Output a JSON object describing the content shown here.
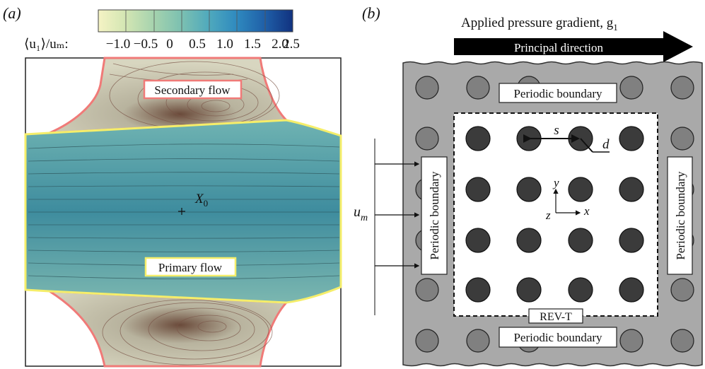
{
  "panel_a": {
    "label": "(a)",
    "colorbar": {
      "axis_label": "⟨u₁⟩/uₘ:",
      "ticks": [
        "−1.0",
        "−0.5",
        "0",
        "0.5",
        "1.0",
        "1.5",
        "2.0",
        "2.5"
      ],
      "colors": [
        "#f5f3c4",
        "#d3e6b3",
        "#a4d2ae",
        "#7bc0b1",
        "#4fa9bd",
        "#2f8abf",
        "#1f5ea7",
        "#11327f"
      ]
    },
    "regions": {
      "secondary_label": "Secondary flow",
      "primary_label": "Primary flow",
      "secondary_border": "#f07a78",
      "primary_border": "#f5ee6a"
    },
    "point_label": "X",
    "point_sub": "0"
  },
  "panel_b": {
    "label": "(b)",
    "arrow_title": "Applied pressure gradient, g",
    "arrow_title_sub": "1",
    "arrow_text": "Principal direction",
    "periodic_top": "Periodic boundary",
    "periodic_bottom": "Periodic boundary",
    "periodic_left": "Periodic boundary",
    "periodic_right": "Periodic boundary",
    "rev_label": "REV-T",
    "s_label": "s",
    "d_label": "d",
    "y_label": "y",
    "x_label": "x",
    "z_label": "z",
    "um_label": "u",
    "um_sub": "m",
    "colors": {
      "outer_bg": "#a9a9a9",
      "outer_circle": "#808080",
      "inner_circle": "#3b3b3b"
    }
  }
}
